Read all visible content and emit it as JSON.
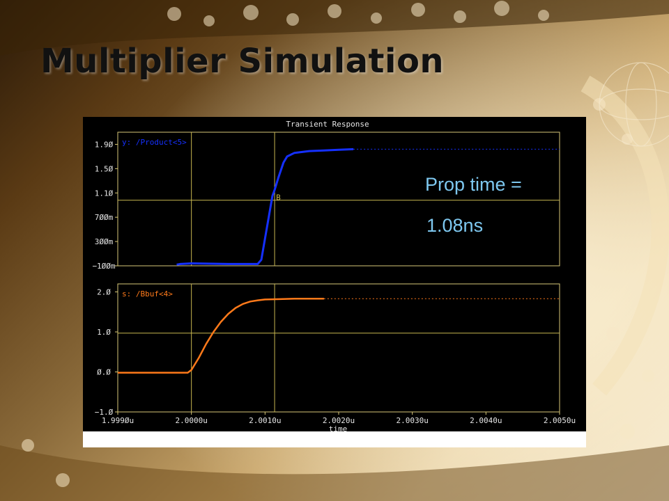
{
  "slide": {
    "title": "Multiplier Simulation",
    "annotation_line1": "Prop time =",
    "annotation_line2": "1.08ns"
  },
  "colors": {
    "plot_background": "#000000",
    "axes": "#d8c878",
    "cursor": "#c8b850",
    "trace_top": "#1530ff",
    "trace_bottom": "#ff7a1a",
    "annotation": "#7ec8f0"
  },
  "chart_data": {
    "type": "line",
    "title": "Transient Response",
    "xlabel": "time",
    "xlim": [
      1.999,
      2.005
    ],
    "x_unit": "u",
    "x_ticks": [
      1.999,
      2.0,
      2.001,
      2.002,
      2.003,
      2.004,
      2.005
    ],
    "x_tick_labels": [
      "1.999Øu",
      "2.0000u",
      "2.0010u",
      "2.0020u",
      "2.0030u",
      "2.0040u",
      "2.0050u"
    ],
    "cursor_x": [
      2.0,
      2.00113
    ],
    "marker_label": "B",
    "panels": [
      {
        "series_name": "y: /Product<5>",
        "ylim": [
          -0.1,
          2.1
        ],
        "y_ticks": [
          1.9,
          1.5,
          1.1,
          0.7,
          0.3,
          -0.1
        ],
        "y_tick_labels": [
          "1.9Ø",
          "1.5Ø",
          "1.1Ø",
          "7ØØm",
          "3ØØm",
          "−1ØØm"
        ],
        "cursor_y": 0.98,
        "x": [
          1.9998,
          1.99985,
          2.0,
          2.0005,
          2.0009,
          2.00095,
          2.001,
          2.00105,
          2.0011,
          2.00113,
          2.00118,
          2.00125,
          2.0013,
          2.0014,
          2.0016,
          2.0018,
          2.002,
          2.0022
        ],
        "y": [
          -0.08,
          -0.07,
          -0.06,
          -0.07,
          -0.07,
          0.0,
          0.35,
          0.7,
          1.05,
          1.15,
          1.35,
          1.6,
          1.7,
          1.76,
          1.79,
          1.8,
          1.81,
          1.82
        ],
        "dotted_extension": {
          "x": [
            2.0022,
            2.005
          ],
          "y": 1.82
        }
      },
      {
        "series_name": "s: /Bbuf<4>",
        "ylim": [
          -1.0,
          2.2
        ],
        "y_ticks": [
          2.0,
          1.0,
          0.0,
          -1.0
        ],
        "y_tick_labels": [
          "2.Ø",
          "1.Ø",
          "Ø.Ø",
          "−1.Ø"
        ],
        "cursor_y": 0.97,
        "x": [
          1.999,
          1.99995,
          2.0,
          2.0001,
          2.0002,
          2.0003,
          2.0004,
          2.0005,
          2.0006,
          2.0007,
          2.0008,
          2.0009,
          2.001,
          2.0012,
          2.0014,
          2.0018
        ],
        "y": [
          -0.02,
          -0.02,
          0.05,
          0.35,
          0.7,
          1.0,
          1.25,
          1.45,
          1.6,
          1.7,
          1.76,
          1.79,
          1.81,
          1.82,
          1.83,
          1.83
        ],
        "dotted_extension": {
          "x": [
            2.0018,
            2.005
          ],
          "y": 1.83
        }
      }
    ]
  }
}
